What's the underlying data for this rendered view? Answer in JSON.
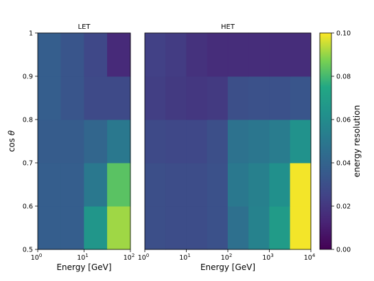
{
  "chart_data": [
    {
      "type": "heatmap",
      "title": "LET",
      "xlabel": "Energy [GeV]",
      "ylabel": "cos θ",
      "x_scale": "log",
      "xlim": [
        1,
        100
      ],
      "ylim": [
        0.5,
        1.0
      ],
      "x_ticks": [
        {
          "base": "10",
          "exp": "0"
        },
        {
          "base": "10",
          "exp": "1"
        },
        {
          "base": "10",
          "exp": "2"
        }
      ],
      "y_ticks": [
        "0.5",
        "0.6",
        "0.7",
        "0.8",
        "0.9",
        "1"
      ],
      "x_bins": [
        1,
        3.16,
        10,
        31.6,
        100
      ],
      "y_bins": [
        0.5,
        0.6,
        0.7,
        0.8,
        0.9,
        1.0
      ],
      "values": [
        [
          0.037,
          0.037,
          0.065,
          0.091
        ],
        [
          0.037,
          0.037,
          0.05,
          0.083
        ],
        [
          0.036,
          0.036,
          0.041,
          0.05
        ],
        [
          0.037,
          0.033,
          0.028,
          0.028
        ],
        [
          0.037,
          0.033,
          0.027,
          0.015
        ]
      ]
    },
    {
      "type": "heatmap",
      "title": "HET",
      "xlabel": "Energy [GeV]",
      "x_scale": "log",
      "xlim": [
        1,
        10000
      ],
      "ylim": [
        0.5,
        1.0
      ],
      "x_ticks": [
        {
          "base": "10",
          "exp": "0"
        },
        {
          "base": "10",
          "exp": "1"
        },
        {
          "base": "10",
          "exp": "2"
        },
        {
          "base": "10",
          "exp": "3"
        },
        {
          "base": "10",
          "exp": "4"
        }
      ],
      "x_bins": [
        1,
        3.16,
        10,
        31.6,
        100,
        316,
        1000,
        3162,
        10000
      ],
      "y_bins": [
        0.5,
        0.6,
        0.7,
        0.8,
        0.9,
        1.0
      ],
      "values": [
        [
          0.03,
          0.029,
          0.029,
          0.031,
          0.046,
          0.055,
          0.068,
          0.099
        ],
        [
          0.03,
          0.029,
          0.029,
          0.031,
          0.05,
          0.054,
          0.062,
          0.099
        ],
        [
          0.028,
          0.027,
          0.027,
          0.03,
          0.047,
          0.049,
          0.052,
          0.063
        ],
        [
          0.023,
          0.021,
          0.02,
          0.021,
          0.03,
          0.031,
          0.031,
          0.033
        ],
        [
          0.024,
          0.022,
          0.018,
          0.016,
          0.016,
          0.016,
          0.016,
          0.016
        ]
      ]
    }
  ],
  "colorbar": {
    "label": "energy resolution",
    "min": 0.0,
    "max": 0.1,
    "ticks": [
      "0.00",
      "0.02",
      "0.04",
      "0.06",
      "0.08",
      "0.10"
    ],
    "colormap": "viridis"
  }
}
